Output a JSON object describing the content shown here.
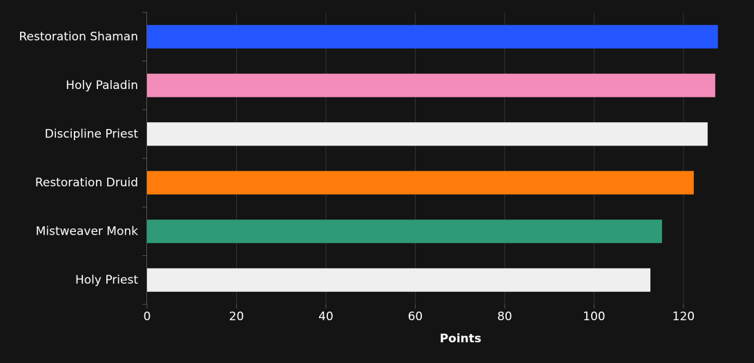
{
  "chart_data": {
    "type": "barh",
    "x_label": "Points",
    "categories": [
      "Restoration Shaman",
      "Holy Paladin",
      "Discipline Priest",
      "Restoration Druid",
      "Mistweaver Monk",
      "Holy Priest"
    ],
    "values": [
      127.7,
      127.1,
      125.4,
      122.3,
      115.2,
      112.6
    ],
    "colors": [
      "#2456ff",
      "#f48cba",
      "#efefef",
      "#ff7c0a",
      "#2e9a78",
      "#efefef"
    ],
    "xlim": [
      0,
      135
    ],
    "xticks": [
      0,
      20,
      40,
      60,
      80,
      100,
      120
    ],
    "grid": true
  }
}
